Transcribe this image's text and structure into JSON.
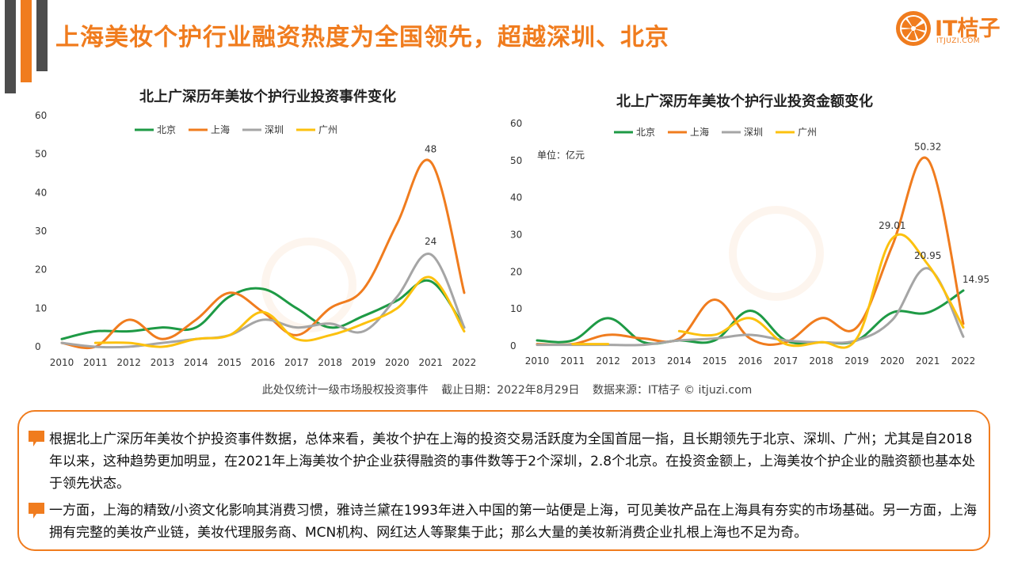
{
  "title": "上海美妆个护行业融资热度为全国领先，超越深圳、北京",
  "logo": {
    "name": "IT桔子",
    "domain": "ITJUZI.COM"
  },
  "colors": {
    "accent": "#f07c1e",
    "beijing": "#1e9a45",
    "shanghai": "#f07c1e",
    "shenzhen": "#a5a5a5",
    "guangzhou": "#fcc10e"
  },
  "chart_data": [
    {
      "type": "line",
      "title": "北上广深历年美妆个护行业投资事件变化",
      "x": [
        "2010",
        "2011",
        "2012",
        "2013",
        "2014",
        "2015",
        "2016",
        "2017",
        "2018",
        "2019",
        "2020",
        "2021",
        "2022"
      ],
      "ylim": [
        0,
        60
      ],
      "yticks": [
        "0",
        "10",
        "20",
        "30",
        "40",
        "50",
        "60"
      ],
      "legend_position": "top",
      "series": [
        {
          "name": "北京",
          "values": [
            2,
            4,
            4,
            5,
            5,
            13,
            15,
            10,
            5,
            8,
            12,
            17,
            5
          ]
        },
        {
          "name": "上海",
          "values": [
            1,
            0,
            7,
            2,
            7,
            14,
            9,
            3,
            10,
            15,
            32,
            48,
            14
          ]
        },
        {
          "name": "深圳",
          "values": [
            1,
            0,
            0,
            1,
            2,
            3,
            7,
            5,
            6,
            4,
            13,
            24,
            5
          ]
        },
        {
          "name": "广州",
          "values": [
            null,
            1,
            1,
            0,
            2,
            3,
            9,
            2,
            3,
            6,
            10,
            18,
            4
          ]
        }
      ],
      "annotations": [
        {
          "x": "2021",
          "series": "上海",
          "label": "48"
        },
        {
          "x": "2021",
          "series": "深圳",
          "label": "24"
        }
      ]
    },
    {
      "type": "line",
      "title": "北上广深历年美妆个护行业投资金额变化",
      "unit_label": "单位：亿元",
      "x": [
        "2010",
        "2011",
        "2012",
        "2013",
        "2014",
        "2015",
        "2016",
        "2017",
        "2018",
        "2019",
        "2020",
        "2021",
        "2022"
      ],
      "ylim": [
        0,
        60
      ],
      "yticks": [
        "0",
        "10",
        "20",
        "30",
        "40",
        "50",
        "60"
      ],
      "legend_position": "top",
      "series": [
        {
          "name": "北京",
          "values": [
            1.5,
            1.5,
            7.5,
            1,
            1.5,
            1.5,
            9.5,
            1.5,
            1,
            1.5,
            9,
            9,
            14.95
          ]
        },
        {
          "name": "上海",
          "values": [
            0.5,
            0.5,
            3,
            2,
            2,
            12.5,
            2,
            1,
            7.5,
            5,
            27,
            50.32,
            6
          ]
        },
        {
          "name": "深圳",
          "values": [
            0.3,
            0.3,
            0.3,
            0.3,
            1.5,
            2,
            3,
            1.5,
            1,
            1.5,
            7,
            20.95,
            2.5
          ]
        },
        {
          "name": "广州",
          "values": [
            null,
            0.5,
            0.5,
            null,
            4,
            3,
            7.5,
            0.5,
            1,
            2,
            29.01,
            22,
            5
          ]
        }
      ],
      "annotations": [
        {
          "x": "2020",
          "series": "广州",
          "label": "29.01"
        },
        {
          "x": "2021",
          "series": "上海",
          "label": "50.32"
        },
        {
          "x": "2021",
          "series": "深圳",
          "label": "20.95"
        },
        {
          "x": "2022",
          "series": "北京",
          "label": "14.95"
        }
      ]
    }
  ],
  "notes": {
    "scope": "此处仅统计一级市场股权投资事件",
    "date": "截止日期：2022年8月29日",
    "source": "数据来源：IT桔子 © itjuzi.com"
  },
  "summary": {
    "p1": "根据北上广深历年美妆个护投资事件数据，总体来看，美妆个护在上海的投资交易活跃度为全国首屈一指，且长期领先于北京、深圳、广州；尤其是自2018年以来，这种趋势更加明显，在2021年上海美妆个护企业获得融资的事件数等于2个深圳，2.8个北京。在投资金额上，上海美妆个护企业的融资额也基本处于领先状态。",
    "p2": "一方面，上海的精致/小资文化影响其消费习惯，雅诗兰黛在1993年进入中国的第一站便是上海，可见美妆产品在上海具有夯实的市场基础。另一方面，上海拥有完整的美妆产业链，美妆代理服务商、MCN机构、网红达人等聚集于此；那么大量的美妆新消费企业扎根上海也不足为奇。"
  }
}
